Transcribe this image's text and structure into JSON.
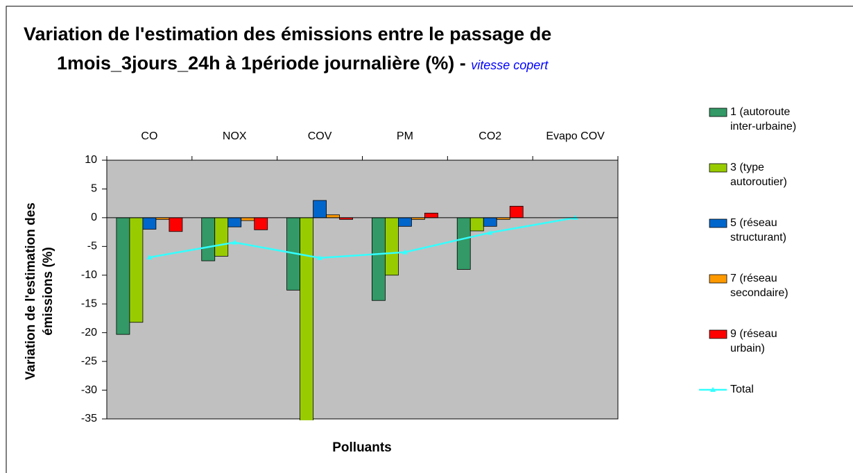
{
  "chart_data": {
    "type": "bar",
    "title": [
      "Variation de l'estimation des  émissions entre le passage de",
      "1mois_3jours_24h à 1période journalière (%) - "
    ],
    "subtitle": "vitesse copert",
    "x_label": "Polluants",
    "y_label": [
      "Variation de l'estimation des",
      "émissions (%)"
    ],
    "categories": [
      "CO",
      "NOX",
      "COV",
      "PM",
      "CO2",
      "Evapo COV"
    ],
    "series": [
      {
        "name": "1 (autoroute inter-urbaine)",
        "color": "#339966",
        "values": [
          -20.3,
          -7.5,
          -12.6,
          -14.4,
          -9,
          null
        ]
      },
      {
        "name": "3 (type autoroutier)",
        "color": "#99cc00",
        "values": [
          -18.2,
          -6.7,
          -35.5,
          -10,
          -2.3,
          null
        ]
      },
      {
        "name": "5 (réseau structurant)",
        "color": "#0066cc",
        "values": [
          -2,
          -1.6,
          3,
          -1.5,
          -1.5,
          null
        ]
      },
      {
        "name": "7 (réseau secondaire)",
        "color": "#ff9900",
        "values": [
          -0.3,
          -0.5,
          0.5,
          -0.3,
          -0.3,
          null
        ]
      },
      {
        "name": "9 (réseau urbain)",
        "color": "#ff0000",
        "values": [
          -2.4,
          -2.1,
          -0.3,
          0.8,
          2,
          null
        ]
      },
      {
        "name": "Total",
        "color": "#33ffff",
        "type": "line",
        "values": [
          -6.9,
          -4.3,
          -7,
          -6,
          -2.6,
          0
        ]
      }
    ],
    "ylim": [
      -35,
      10
    ],
    "yticks": [
      -35,
      -30,
      -25,
      -20,
      -15,
      -10,
      -5,
      0,
      5,
      10
    ],
    "plot_background": "#c0c0c0"
  }
}
